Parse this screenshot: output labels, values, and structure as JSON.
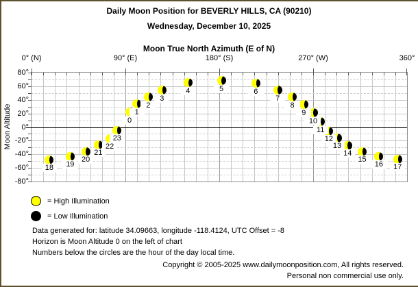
{
  "window": {
    "background": "#ffffff",
    "border_color": "#5d5130"
  },
  "header": {
    "title": "Daily Moon Position for BEVERLY HILLS, CA (90210)",
    "subtitle": "Wednesday, December 10, 2025"
  },
  "chart_data": {
    "type": "scatter",
    "title": "Moon True North Azimuth (E of N)",
    "ylabel": "Moon Altitude",
    "xlim": [
      0,
      360
    ],
    "ylim": [
      -80,
      80
    ],
    "x_axis_side": "top",
    "grid": true,
    "x_grid_step": 11.25,
    "y_major_step": 20,
    "y_minor_step": 10,
    "x_major_ticks": [
      {
        "value": 0,
        "label": "0° (N)"
      },
      {
        "value": 90,
        "label": "90° (E)"
      },
      {
        "value": 180,
        "label": "180° (S)"
      },
      {
        "value": 270,
        "label": "270° (W)"
      },
      {
        "value": 360,
        "label": "360°"
      }
    ],
    "y_tick_labels": [
      "80°",
      "60°",
      "40°",
      "20°",
      "0°",
      "-20°",
      "-40°",
      "-60°",
      "-80°"
    ],
    "points": [
      {
        "hour": 0,
        "azimuth": 94,
        "altitude": 22
      },
      {
        "hour": 1,
        "azimuth": 101,
        "altitude": 34
      },
      {
        "hour": 2,
        "azimuth": 112,
        "altitude": 44
      },
      {
        "hour": 3,
        "azimuth": 125,
        "altitude": 54
      },
      {
        "hour": 4,
        "azimuth": 150,
        "altitude": 65
      },
      {
        "hour": 5,
        "azimuth": 182,
        "altitude": 68
      },
      {
        "hour": 6,
        "azimuth": 215,
        "altitude": 64
      },
      {
        "hour": 7,
        "azimuth": 236,
        "altitude": 54
      },
      {
        "hour": 8,
        "azimuth": 250,
        "altitude": 44
      },
      {
        "hour": 9,
        "azimuth": 261,
        "altitude": 33
      },
      {
        "hour": 10,
        "azimuth": 270,
        "altitude": 21
      },
      {
        "hour": 11,
        "azimuth": 277,
        "altitude": 8
      },
      {
        "hour": 12,
        "azimuth": 285,
        "altitude": -6
      },
      {
        "hour": 13,
        "azimuth": 293,
        "altitude": -16
      },
      {
        "hour": 14,
        "azimuth": 303,
        "altitude": -27
      },
      {
        "hour": 15,
        "azimuth": 317,
        "altitude": -36
      },
      {
        "hour": 16,
        "azimuth": 333,
        "altitude": -43
      },
      {
        "hour": 17,
        "azimuth": 351,
        "altitude": -47
      },
      {
        "hour": 18,
        "azimuth": 17,
        "altitude": -48
      },
      {
        "hour": 19,
        "azimuth": 37,
        "altitude": -43
      },
      {
        "hour": 20,
        "azimuth": 52,
        "altitude": -36
      },
      {
        "hour": 21,
        "azimuth": 64,
        "altitude": -26
      },
      {
        "hour": 22,
        "azimuth": 75,
        "altitude": -17
      },
      {
        "hour": 23,
        "azimuth": 82,
        "altitude": -5
      }
    ]
  },
  "moon_style": {
    "lit_color": "#ffff00",
    "dark_color": "#000000"
  },
  "legend": {
    "high": {
      "label": "= High Illumination",
      "color": "#ffff00"
    },
    "low": {
      "label": "= Low Illumination",
      "color": "#000000"
    }
  },
  "notes": [
    "Data generated for: latitude 34.09663, longitude -118.4124, UTC Offset = -8",
    "Horizon is Moon Altitude 0 on the left of chart",
    "Numbers below the circles are the hour of the day local time."
  ],
  "footer": {
    "line1": "Copyright © 2005-2025 www.dailymoonposition.com, All rights reserved.",
    "line2": "Personal non commercial use only."
  }
}
